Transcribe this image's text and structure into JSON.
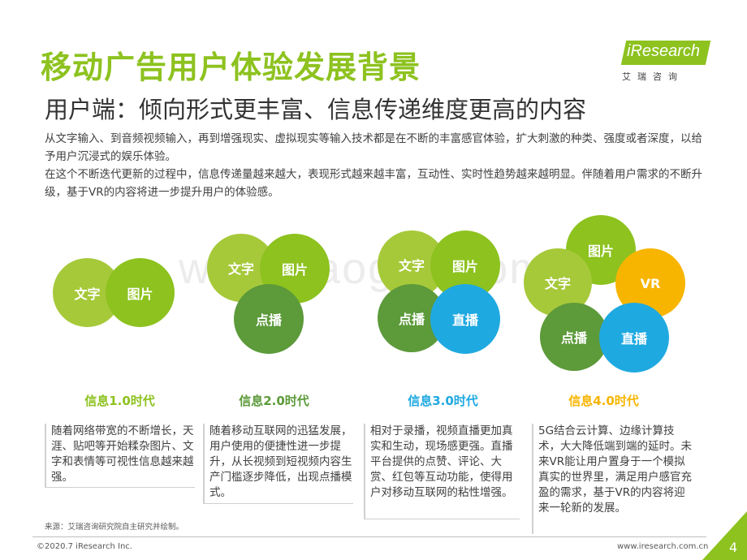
{
  "title": "移动广告用户体验发展背景",
  "subtitle": "用户端：倾向形式更丰富、信息传递维度更高的内容",
  "logo": {
    "text": "iResearch",
    "cn": "艾瑞咨询"
  },
  "intro": {
    "p1": "从文字输入、到音频视频输入，再到增强现实、虚拟现实等输入技术都是在不断的丰富感官体验，扩大刺激的种类、强度或者深度，以给予用户沉浸式的娱乐体验。",
    "p2": "在这个不断迭代更新的过程中，信息传递量越来越大，表现形式越来越丰富，互动性、实时性趋势越来越明显。伴随着用户需求的不断升级，基于VR的内容将进一步提升用户的体验感。"
  },
  "watermark": "www.baogao.com",
  "colors": {
    "green_light": "#a6c93a",
    "green_bright": "#8dc21f",
    "green_dark": "#5c9a3a",
    "blue": "#1fa9e1",
    "gold": "#f7b500"
  },
  "labels": {
    "text": "文字",
    "image": "图片",
    "vod": "点播",
    "live": "直播",
    "vr": "VR"
  },
  "eras": [
    {
      "title": "信息1.0时代",
      "desc": "随着网络带宽的不断增长，天涯、贴吧等开始糅杂图片、文字和表情等可视性信息越来越强。"
    },
    {
      "title": "信息2.0时代",
      "desc": "随着移动互联网的迅猛发展，用户使用的便捷性进一步提升，从长视频到短视频内容生产门槛逐步降低，出现点播模式。"
    },
    {
      "title": "信息3.0时代",
      "desc": "相对于录播，视频直播更加真实和生动，现场感更强。直播平台提供的点赞、评论、大赏、红包等互动功能，使得用户对移动互联网的粘性增强。"
    },
    {
      "title": "信息4.0时代",
      "desc": "5G结合云计算、边缘计算技术，大大降低端到端的延时。未来VR能让用户置身于一个模拟真实的世界里，满足用户感官充盈的需求，基于VR的内容将迎来一轮新的发展。"
    }
  ],
  "source": "来源：艾瑞咨询研究院自主研究并绘制。",
  "footer": {
    "copyright": "©2020.7 iResearch Inc.",
    "website": "www.iresearch.com.cn",
    "page": "4"
  }
}
